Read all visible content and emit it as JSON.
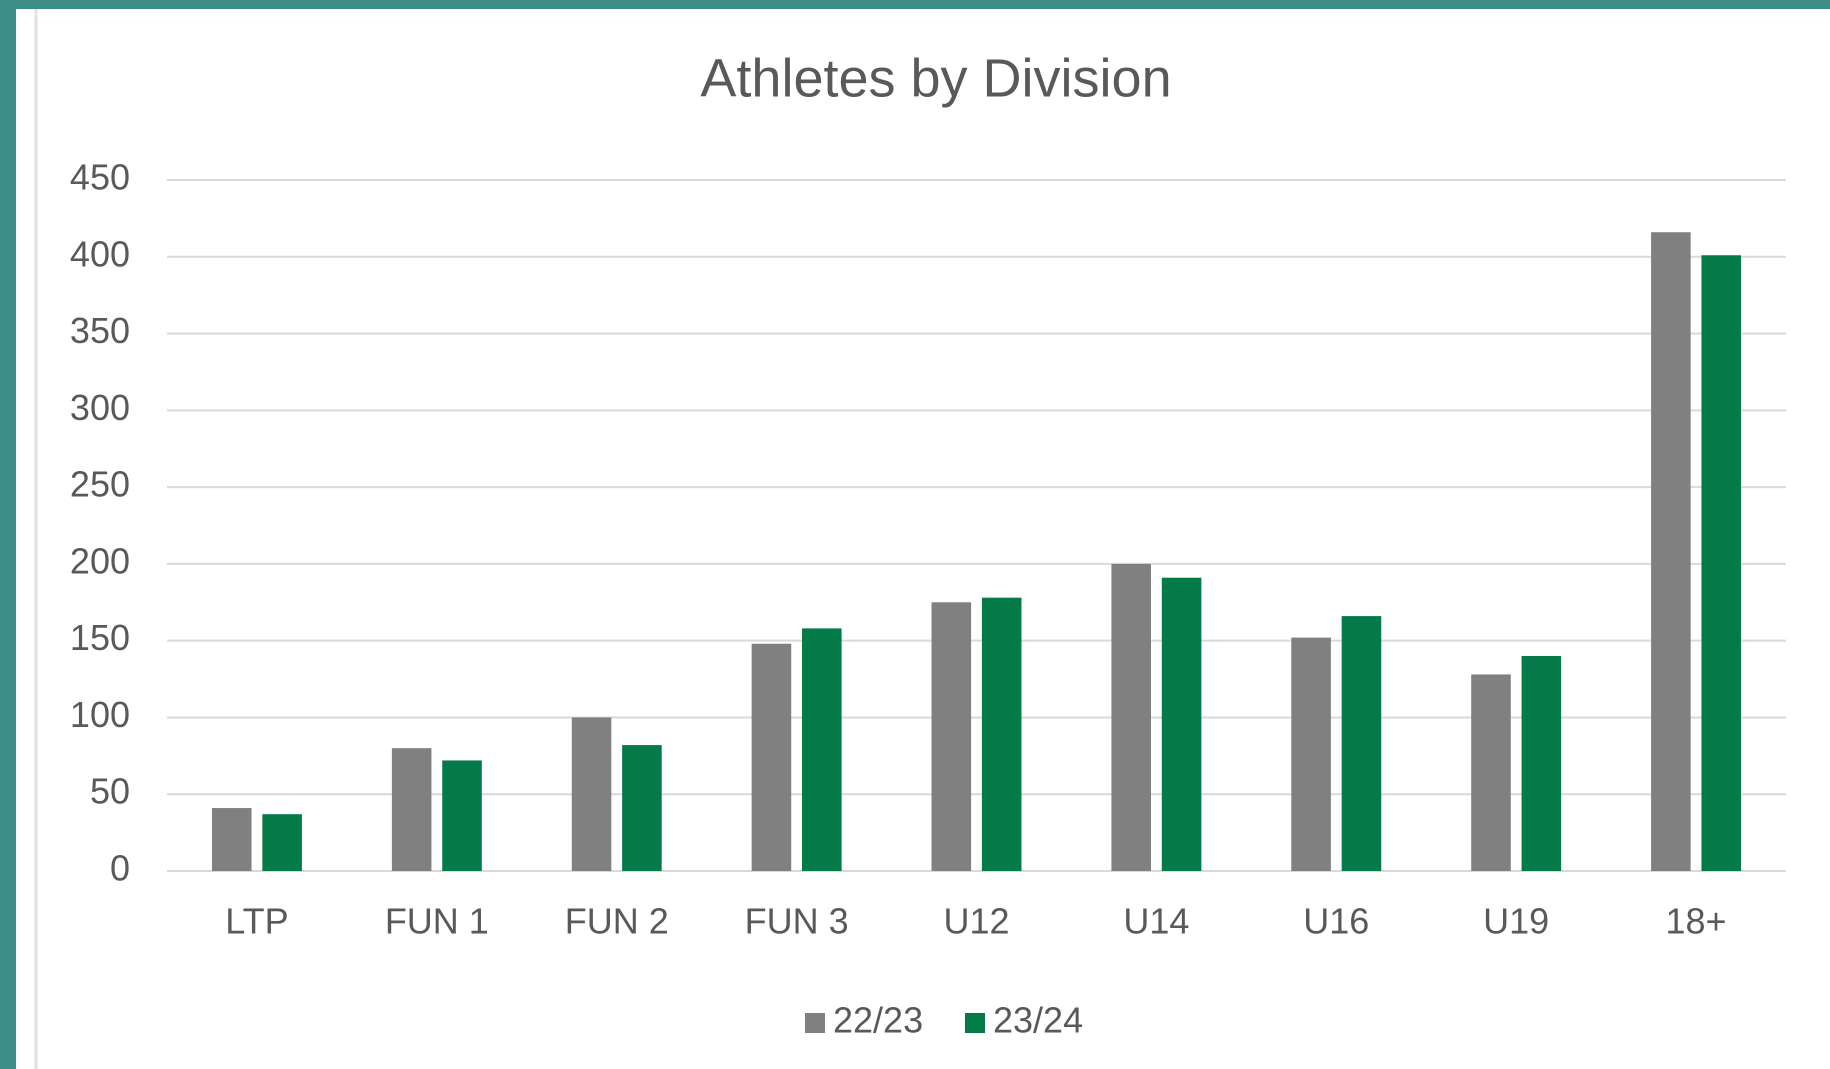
{
  "chart_data": {
    "type": "bar",
    "title": "Athletes by Division",
    "categories": [
      "LTP",
      "FUN 1",
      "FUN 2",
      "FUN 3",
      "U12",
      "U14",
      "U16",
      "U19",
      "18+"
    ],
    "series": [
      {
        "name": "22/23",
        "color": "#808080",
        "values": [
          41,
          80,
          100,
          148,
          175,
          200,
          152,
          128,
          416
        ]
      },
      {
        "name": "23/24",
        "color": "#047a48",
        "values": [
          37,
          72,
          82,
          158,
          178,
          191,
          166,
          140,
          401
        ]
      }
    ],
    "ylim": [
      0,
      450
    ],
    "yticks": [
      0,
      50,
      100,
      150,
      200,
      250,
      300,
      350,
      400,
      450
    ],
    "grid": true,
    "legend": "bottom"
  }
}
